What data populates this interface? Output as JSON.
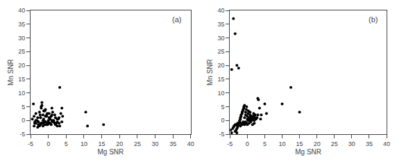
{
  "chart_data": [
    {
      "type": "scatter",
      "xlabel": "Mg SNR",
      "ylabel": "Mn SNR",
      "annotations": [
        "(a)"
      ],
      "color": "black",
      "marker": "circle",
      "grid": false,
      "x": [
        -4.5,
        -4.0,
        -3.8,
        -3.5,
        -3.2,
        -3.0,
        -2.8,
        -2.5,
        -2.5,
        -2.3,
        -2.2,
        -2.0,
        -2.0,
        -1.8,
        -1.5,
        -1.5,
        -1.3,
        -1.0,
        -1.0,
        -0.8,
        -0.5,
        -0.3,
        -0.2,
        0.0,
        0.2,
        0.5,
        0.8,
        1.0,
        1.2,
        1.5,
        2.0,
        2.5,
        3.0,
        3.5,
        4.0,
        -4.2,
        -3.5,
        -2.8,
        -2.0,
        -1.8,
        -1.5,
        -1.2,
        -0.8,
        -0.5,
        0.0,
        0.3,
        0.8,
        1.0,
        1.5,
        1.8,
        2.2,
        2.8,
        3.2,
        3.8,
        -3.0,
        -2.5,
        -2.2,
        -1.8,
        -1.0,
        -0.8,
        -0.3,
        0.0,
        0.5,
        1.0,
        1.5,
        2.0,
        2.5,
        3.0,
        -4.0,
        -3.5,
        -2.8,
        -2.2,
        -1.5,
        -0.8,
        -0.2,
        0.5,
        1.2,
        1.8,
        2.5,
        3.2,
        3.8,
        10.5,
        15.5,
        11.0,
        -3.8,
        -1.3,
        0.2,
        -0.5,
        -1.0,
        -2.0
      ],
      "values": [
        0.5,
        1.5,
        -0.5,
        2.5,
        0.0,
        1.0,
        -1.5,
        3.0,
        -2.0,
        2.0,
        1.0,
        4.5,
        -1.0,
        5.5,
        2.0,
        -2.0,
        0.5,
        3.5,
        -1.5,
        4.0,
        1.5,
        2.5,
        -1.0,
        0.0,
        1.0,
        0.5,
        1.5,
        2.0,
        3.0,
        0.0,
        1.0,
        0.5,
        1.0,
        2.5,
        1.5,
        6.0,
        0.0,
        -0.5,
        5.0,
        6.5,
        0.0,
        3.5,
        -0.5,
        2.0,
        -1.0,
        1.0,
        -1.5,
        4.5,
        -0.5,
        2.0,
        -1.0,
        0.5,
        -2.0,
        -0.5,
        -2.5,
        -1.5,
        1.0,
        -1.0,
        -0.5,
        1.5,
        -1.5,
        -0.5,
        -1.0,
        0.0,
        -0.5,
        -1.5,
        -2.0,
        -1.0,
        -2.0,
        -1.0,
        -0.5,
        -1.5,
        -1.0,
        -0.5,
        -1.5,
        -1.0,
        -0.5,
        -1.0,
        -0.5,
        12.0,
        4.5,
        3.0,
        -1.5,
        -2.0,
        -1.0,
        3.5,
        2.5,
        -1.5,
        -0.5,
        -1.0
      ],
      "xlim": [
        -5,
        40
      ],
      "ylim": [
        -5,
        40
      ],
      "xticks": [
        -5,
        0,
        5,
        10,
        15,
        20,
        25,
        30,
        35,
        40
      ],
      "yticks": [
        -5,
        0,
        5,
        10,
        15,
        20,
        25,
        30,
        35,
        40
      ]
    },
    {
      "type": "scatter",
      "xlabel": "Mg SNR",
      "ylabel": "Mn SNR",
      "annotations": [
        "(b)"
      ],
      "color": "black",
      "marker": "circle",
      "grid": false,
      "x": [
        -4.8,
        -4.5,
        -4.2,
        -4.0,
        -3.8,
        -3.5,
        -3.5,
        -3.2,
        -3.0,
        -3.0,
        -2.8,
        -2.8,
        -2.5,
        -2.5,
        -2.3,
        -2.2,
        -2.0,
        -2.0,
        -1.8,
        -1.8,
        -1.5,
        -1.5,
        -1.3,
        -1.2,
        -1.0,
        -1.0,
        -0.8,
        -0.8,
        -0.5,
        -0.5,
        -0.3,
        -0.2,
        0.0,
        0.0,
        0.2,
        0.3,
        0.5,
        0.5,
        0.8,
        0.8,
        1.0,
        1.0,
        1.2,
        1.5,
        1.5,
        1.8,
        2.0,
        2.0,
        2.2,
        2.5,
        2.8,
        3.0,
        3.2,
        3.5,
        3.8,
        4.0,
        5.0,
        5.5,
        10.0,
        12.5,
        15.0,
        -4.5,
        -4.0,
        -3.5,
        -3.0,
        -2.5,
        -2.0,
        -1.5,
        -1.0,
        -0.5,
        0.0,
        0.5,
        1.0,
        1.5,
        2.0,
        2.5,
        3.0,
        -3.8,
        -3.2,
        -2.8,
        -2.2,
        -1.8,
        -1.2,
        -0.8,
        -0.2,
        0.2,
        0.8,
        1.2,
        1.8,
        2.2
      ],
      "values": [
        -3.5,
        -4.5,
        -3.0,
        -2.5,
        -2.0,
        -4.0,
        -1.5,
        -3.5,
        -4.5,
        -3.0,
        -2.5,
        -2.0,
        -1.5,
        -1.0,
        -0.5,
        0.0,
        0.5,
        1.0,
        1.5,
        2.0,
        2.5,
        3.0,
        3.5,
        4.0,
        4.5,
        5.0,
        5.5,
        1.0,
        2.0,
        3.0,
        4.0,
        5.0,
        0.5,
        1.5,
        2.5,
        3.5,
        0.0,
        1.0,
        2.0,
        3.0,
        0.5,
        1.5,
        0.0,
        0.5,
        1.5,
        2.5,
        0.0,
        1.0,
        2.0,
        0.5,
        1.0,
        8.0,
        7.5,
        4.5,
        0.5,
        2.0,
        6.0,
        2.5,
        6.0,
        12.0,
        3.0,
        18.5,
        37.0,
        31.5,
        20.0,
        19.0,
        -2.0,
        -1.5,
        -1.0,
        -0.5,
        -1.5,
        -1.0,
        -0.5,
        -1.5,
        -1.0,
        1.0,
        2.0,
        -2.0,
        -1.5,
        -1.0,
        -0.5,
        -1.0,
        -0.5,
        -1.5,
        -1.0,
        0.0,
        0.5,
        1.0,
        1.5,
        2.0
      ],
      "xlim": [
        -5,
        40
      ],
      "ylim": [
        -5,
        40
      ],
      "xticks": [
        -5,
        0,
        5,
        10,
        15,
        20,
        25,
        30,
        35,
        40
      ],
      "yticks": [
        -5,
        0,
        5,
        10,
        15,
        20,
        25,
        30,
        35,
        40
      ]
    }
  ]
}
